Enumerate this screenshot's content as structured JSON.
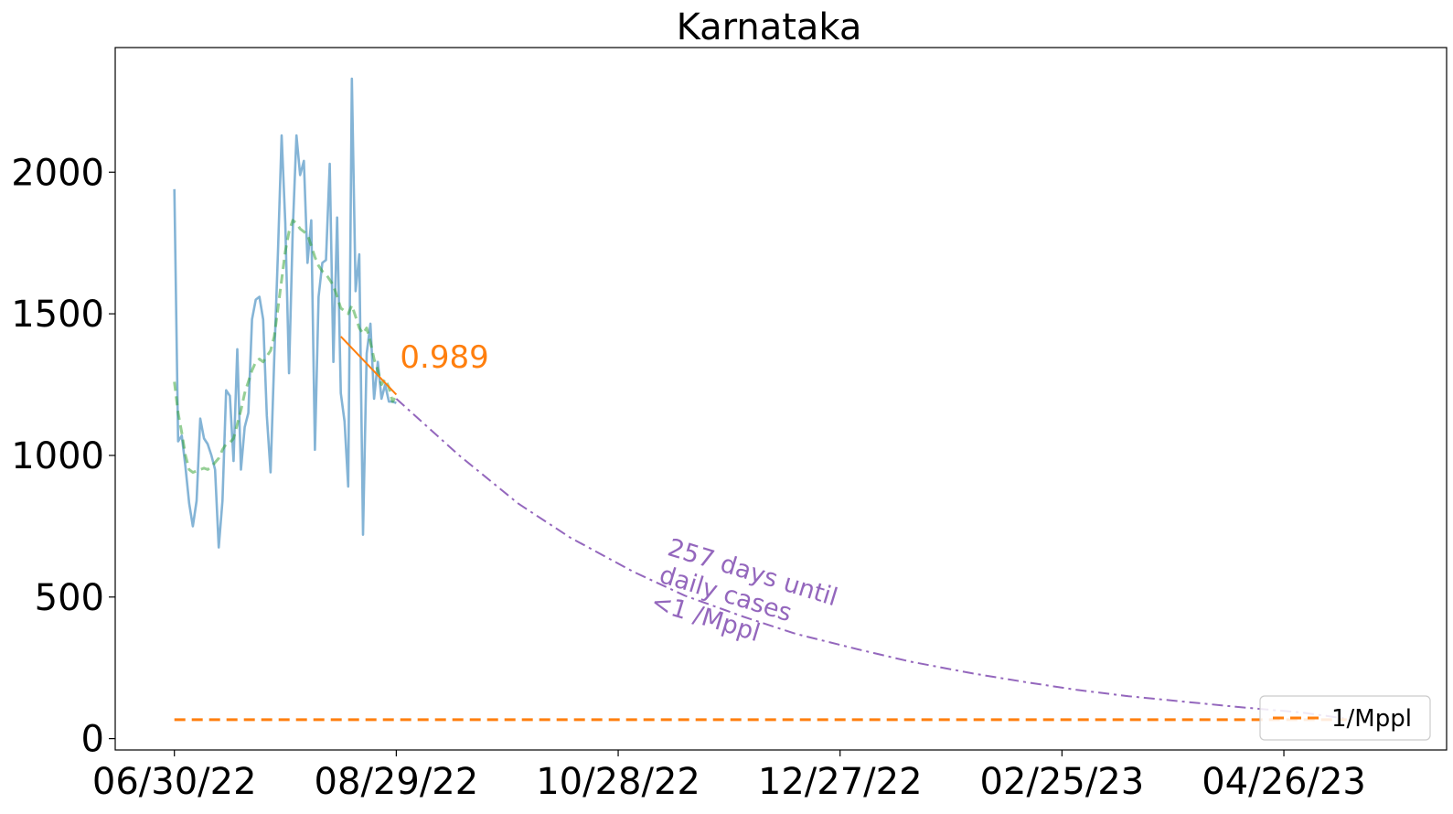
{
  "chart_data": {
    "type": "line",
    "title": "Karnataka",
    "xlabel": "",
    "ylabel": "",
    "x_ticks": [
      "06/30/22",
      "08/29/22",
      "10/28/22",
      "12/27/22",
      "02/25/23",
      "04/26/23"
    ],
    "y_ticks": [
      "0",
      "500",
      "1000",
      "1500",
      "2000"
    ],
    "xlim": [
      "2022-06-14",
      "2023-06-09"
    ],
    "ylim": [
      -40,
      2440
    ],
    "grid": false,
    "legend": {
      "placement": "lower-right",
      "entries": [
        {
          "label": "1/Mppl",
          "color": "#ff7f0e",
          "style": "dashed"
        }
      ]
    },
    "series": [
      {
        "role": "daily_cases",
        "color": "#1f77b4",
        "opacity": 0.55,
        "x": [
          "2022-06-30",
          "2022-07-01",
          "2022-07-02",
          "2022-07-03",
          "2022-07-04",
          "2022-07-05",
          "2022-07-06",
          "2022-07-07",
          "2022-07-08",
          "2022-07-09",
          "2022-07-10",
          "2022-07-11",
          "2022-07-12",
          "2022-07-13",
          "2022-07-14",
          "2022-07-15",
          "2022-07-16",
          "2022-07-17",
          "2022-07-18",
          "2022-07-19",
          "2022-07-20",
          "2022-07-21",
          "2022-07-22",
          "2022-07-23",
          "2022-07-24",
          "2022-07-25",
          "2022-07-26",
          "2022-07-27",
          "2022-07-28",
          "2022-07-29",
          "2022-07-30",
          "2022-07-31",
          "2022-08-01",
          "2022-08-02",
          "2022-08-03",
          "2022-08-04",
          "2022-08-05",
          "2022-08-06",
          "2022-08-07",
          "2022-08-08",
          "2022-08-09",
          "2022-08-10",
          "2022-08-11",
          "2022-08-12",
          "2022-08-13",
          "2022-08-14",
          "2022-08-15",
          "2022-08-16",
          "2022-08-17",
          "2022-08-18",
          "2022-08-19",
          "2022-08-20",
          "2022-08-21",
          "2022-08-22",
          "2022-08-23",
          "2022-08-24",
          "2022-08-25",
          "2022-08-26",
          "2022-08-27",
          "2022-08-28",
          "2022-08-29"
        ],
        "values": [
          1940,
          1050,
          1070,
          960,
          830,
          750,
          840,
          1130,
          1060,
          1040,
          1000,
          950,
          675,
          840,
          1230,
          1210,
          980,
          1375,
          950,
          1100,
          1150,
          1480,
          1550,
          1560,
          1480,
          1140,
          940,
          1340,
          1720,
          2130,
          1820,
          1290,
          1790,
          2130,
          1990,
          2040,
          1680,
          1830,
          1020,
          1560,
          1680,
          1690,
          2030,
          1330,
          1840,
          1220,
          1120,
          890,
          2330,
          1580,
          1710,
          720,
          1360,
          1465,
          1200,
          1330,
          1200,
          1250,
          1190,
          1190,
          1185
        ]
      },
      {
        "role": "rolling_average",
        "color": "#2ca02c",
        "opacity": 0.5,
        "style": "dashed",
        "x": [
          "2022-06-30",
          "2022-07-01",
          "2022-07-02",
          "2022-07-03",
          "2022-07-04",
          "2022-07-05",
          "2022-07-06",
          "2022-07-07",
          "2022-07-08",
          "2022-07-09",
          "2022-07-10",
          "2022-07-11",
          "2022-07-12",
          "2022-07-13",
          "2022-07-14",
          "2022-07-15",
          "2022-07-16",
          "2022-07-17",
          "2022-07-18",
          "2022-07-19",
          "2022-07-20",
          "2022-07-21",
          "2022-07-22",
          "2022-07-23",
          "2022-07-24",
          "2022-07-25",
          "2022-07-26",
          "2022-07-27",
          "2022-07-28",
          "2022-07-29",
          "2022-07-30",
          "2022-07-31",
          "2022-08-01",
          "2022-08-02",
          "2022-08-03",
          "2022-08-04",
          "2022-08-05",
          "2022-08-06",
          "2022-08-07",
          "2022-08-08",
          "2022-08-09",
          "2022-08-10",
          "2022-08-11",
          "2022-08-12",
          "2022-08-13",
          "2022-08-14",
          "2022-08-15",
          "2022-08-16",
          "2022-08-17",
          "2022-08-18",
          "2022-08-19",
          "2022-08-20",
          "2022-08-21",
          "2022-08-22",
          "2022-08-23",
          "2022-08-24",
          "2022-08-25",
          "2022-08-26",
          "2022-08-27",
          "2022-08-28",
          "2022-08-29"
        ],
        "values": [
          1260,
          1150,
          1080,
          1000,
          950,
          940,
          945,
          950,
          955,
          950,
          960,
          975,
          990,
          1020,
          1040,
          1045,
          1060,
          1110,
          1160,
          1220,
          1260,
          1300,
          1330,
          1340,
          1330,
          1350,
          1370,
          1420,
          1520,
          1620,
          1720,
          1790,
          1830,
          1820,
          1800,
          1790,
          1780,
          1740,
          1700,
          1670,
          1650,
          1640,
          1620,
          1600,
          1560,
          1520,
          1510,
          1500,
          1530,
          1490,
          1450,
          1430,
          1450,
          1400,
          1340,
          1300,
          1250,
          1270,
          1240,
          1190,
          1210
        ]
      },
      {
        "role": "trend",
        "color": "#ff7f0e",
        "x": [
          "2022-08-14",
          "2022-08-29"
        ],
        "values": [
          1420,
          1215
        ]
      },
      {
        "role": "projection",
        "color": "#9467bd",
        "style": "dashdot",
        "x": [
          "2022-08-29",
          "2022-09-15",
          "2022-10-01",
          "2022-10-15",
          "2022-11-01",
          "2022-11-15",
          "2022-12-01",
          "2022-12-15",
          "2023-01-01",
          "2023-01-15",
          "2023-02-01",
          "2023-02-15",
          "2023-03-01",
          "2023-03-15",
          "2023-04-01",
          "2023-04-15",
          "2023-05-01",
          "2023-05-13"
        ],
        "values": [
          1200,
          1000,
          830,
          710,
          590,
          505,
          430,
          370,
          315,
          272,
          230,
          200,
          172,
          150,
          128,
          110,
          92,
          70
        ]
      },
      {
        "role": "threshold",
        "name": "1/Mppl",
        "color": "#ff7f0e",
        "style": "dashed",
        "x": [
          "2022-06-30",
          "2023-05-13"
        ],
        "values": [
          67,
          67
        ]
      }
    ],
    "annotations": [
      {
        "text": "0.989",
        "color": "#ff7f0e",
        "x": "2022-08-30",
        "y": 1310
      },
      {
        "lines": [
          "257 days until",
          "daily cases",
          "<1 /Mppl"
        ],
        "color": "#9467bd",
        "x": "2022-11-10",
        "y": 650,
        "rotation": 17
      }
    ]
  }
}
